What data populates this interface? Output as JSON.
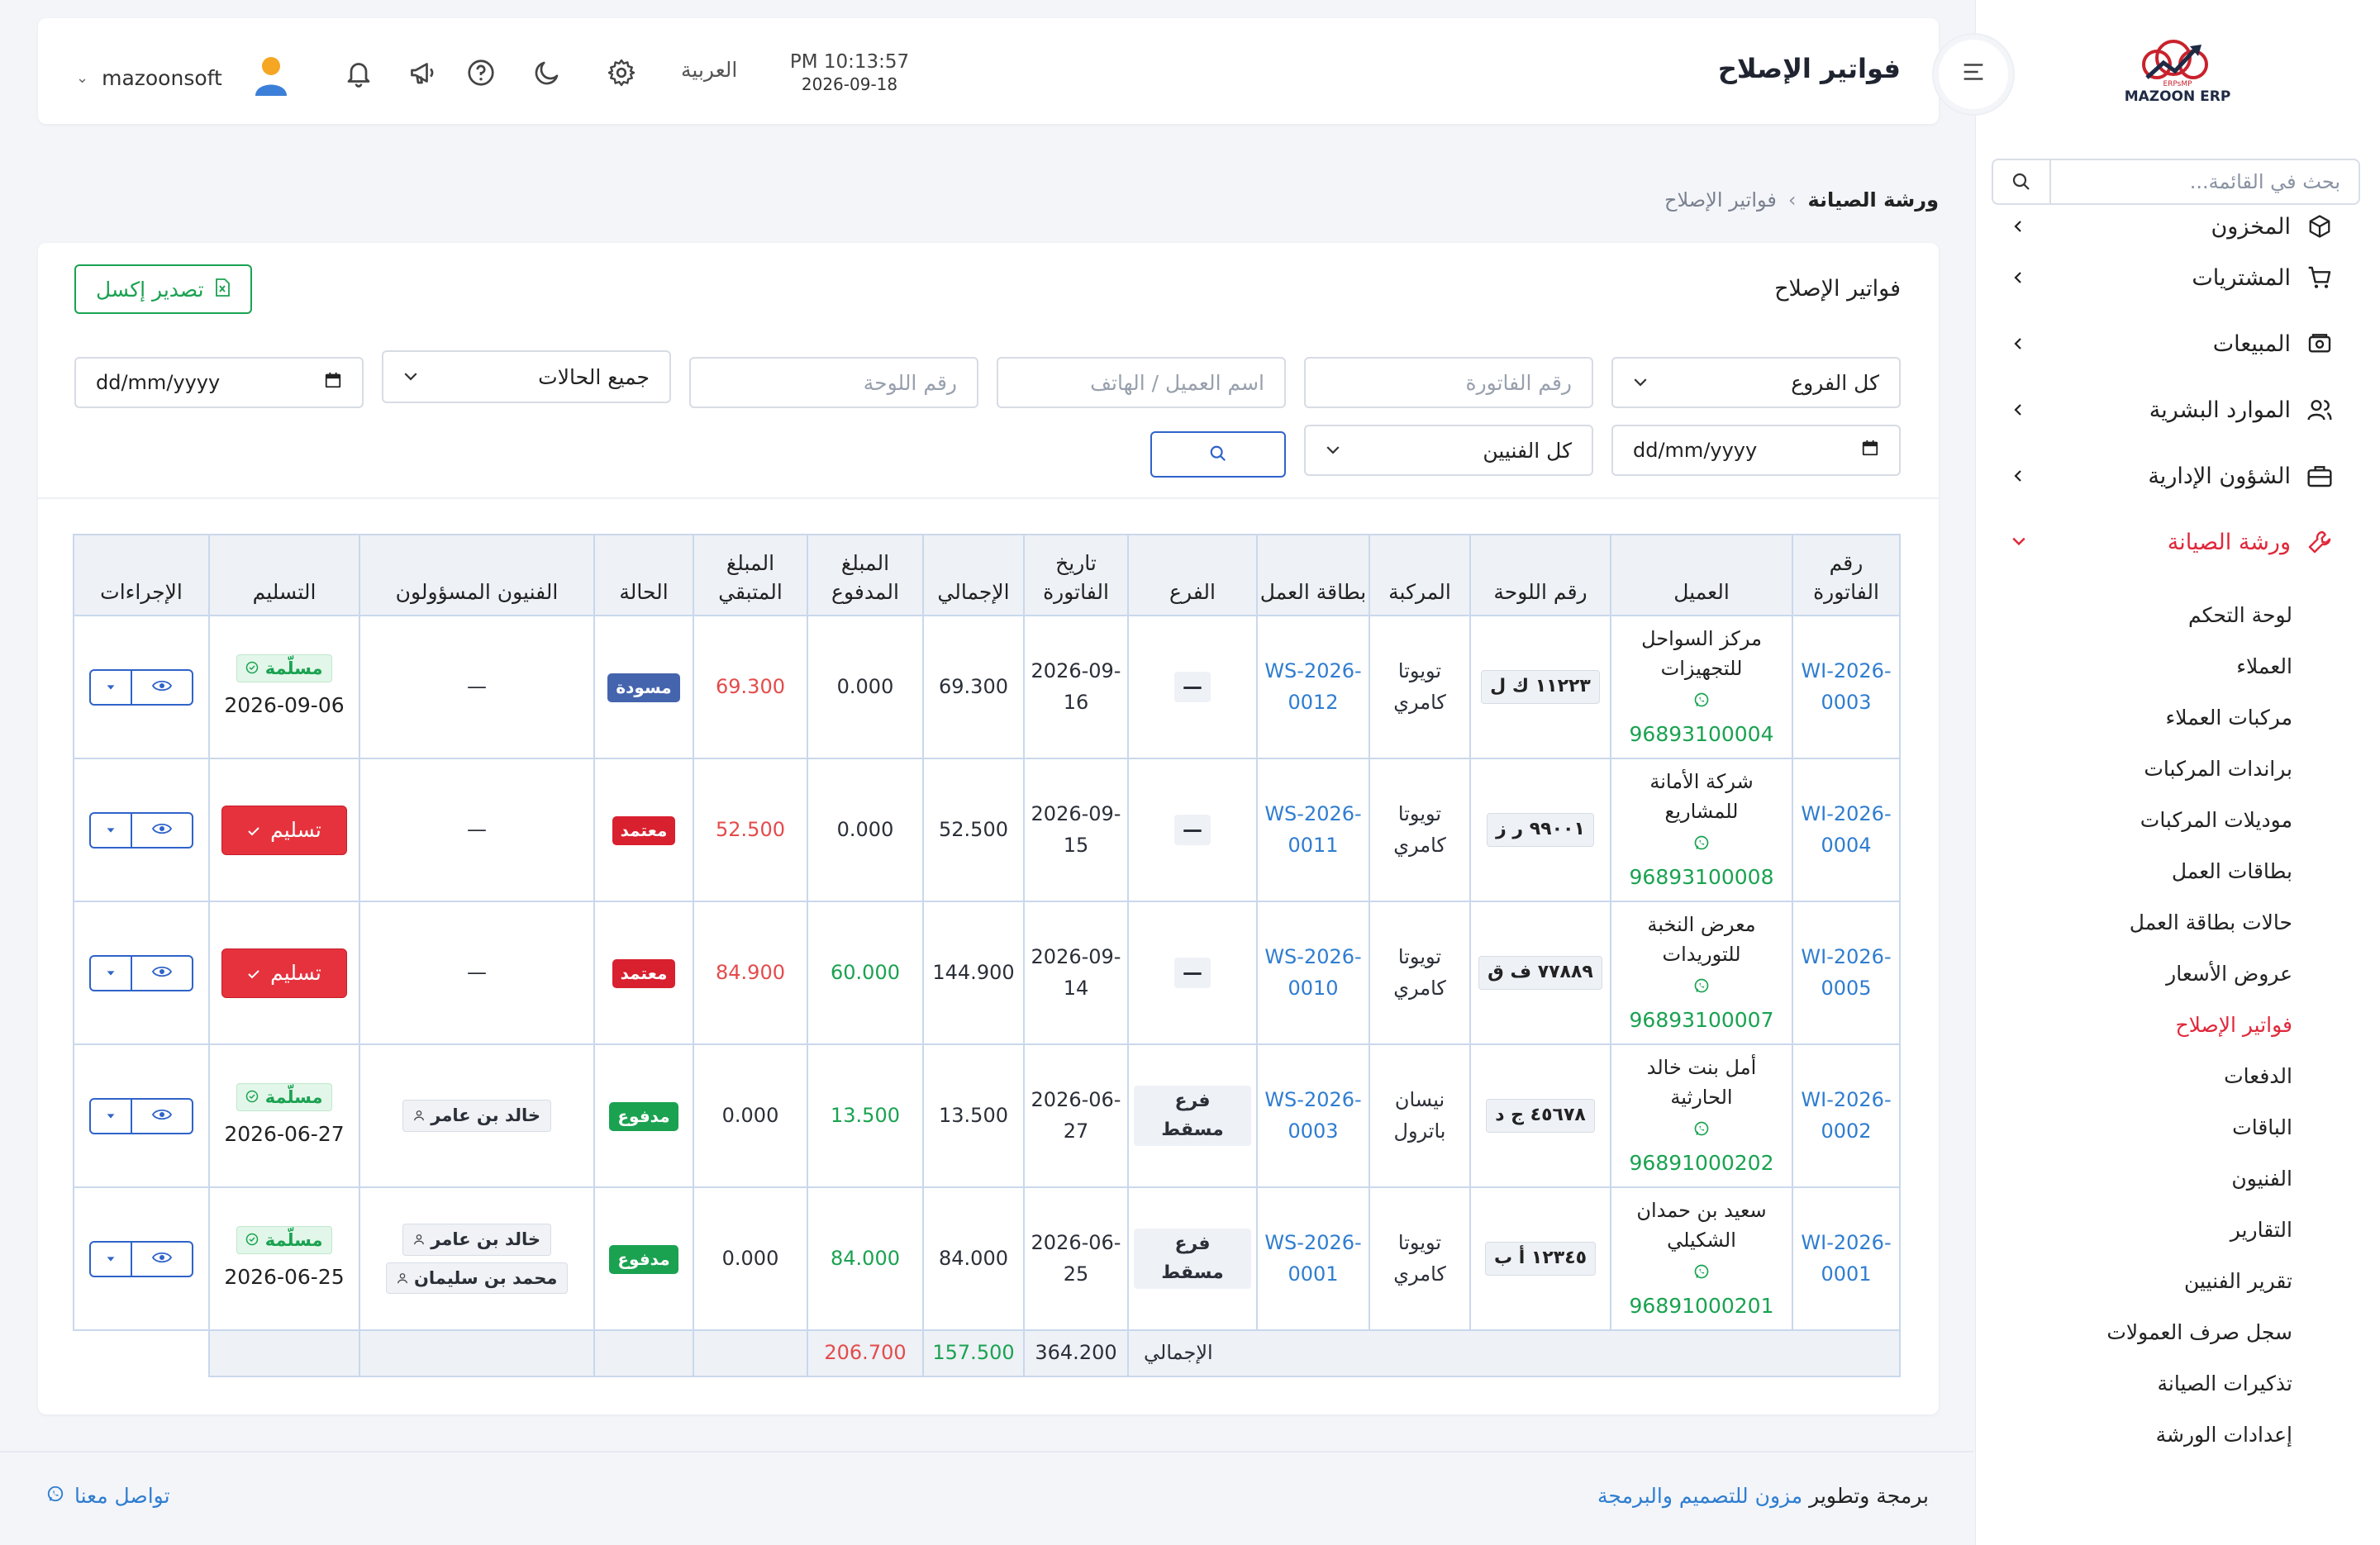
{
  "app": {
    "brand": "MAZOON ERP",
    "brand_sub": "ERPsMP"
  },
  "search": {
    "placeholder": "بحث في القائمة..."
  },
  "sidebar": {
    "items": [
      {
        "label": "المخزون"
      },
      {
        "label": "المشتريات"
      },
      {
        "label": "المبيعات"
      },
      {
        "label": "الموارد البشرية"
      },
      {
        "label": "الشؤون الإدارية"
      },
      {
        "label": "ورشة الصيانة"
      }
    ],
    "sub_items": [
      {
        "label": "لوحة التحكم"
      },
      {
        "label": "العملاء"
      },
      {
        "label": "مركبات العملاء"
      },
      {
        "label": "براندات المركبات"
      },
      {
        "label": "موديلات المركبات"
      },
      {
        "label": "بطاقات العمل"
      },
      {
        "label": "حالات بطاقة العمل"
      },
      {
        "label": "عروض الأسعار"
      },
      {
        "label": "فواتير الإصلاح"
      },
      {
        "label": "الدفعات"
      },
      {
        "label": "الباقات"
      },
      {
        "label": "الفنيون"
      },
      {
        "label": "التقارير"
      },
      {
        "label": "تقرير الفنيين"
      },
      {
        "label": "سجل صرف العمولات"
      },
      {
        "label": "تذكيرات الصيانة"
      },
      {
        "label": "إعدادات الورشة"
      }
    ]
  },
  "header": {
    "title": "فواتير الإصلاح",
    "time": "PM 10:13:57",
    "date": "2026-09-18",
    "language": "العربية",
    "username": "mazoonsoft"
  },
  "breadcrumb": {
    "home": "ورشة الصيانة",
    "separator": "›",
    "current": "فواتير الإصلاح"
  },
  "card": {
    "title": "فواتير الإصلاح",
    "export_label": "تصدير إكسل"
  },
  "filters": {
    "branch": "كل الفروع",
    "invoice_placeholder": "رقم الفاتورة",
    "client_placeholder": "اسم العميل / الهاتف",
    "plate_placeholder": "رقم اللوحة",
    "status": "جميع الحالات",
    "date_from": "dd/mm/yyyy",
    "technicians": "كل الفنيين",
    "date_to": "dd/mm/yyyy"
  },
  "table": {
    "headers": {
      "invoice": "رقم الفاتورة",
      "client": "العميل",
      "plate": "رقم اللوحة",
      "vehicle": "المركبة",
      "job_card": "بطاقة العمل",
      "branch": "الفرع",
      "date": "تاريخ الفاتورة",
      "total": "الإجمالي",
      "paid": "المبلغ المدفوع",
      "remaining": "المبلغ المتبقي",
      "status": "الحالة",
      "technicians": "الفنيون المسؤولون",
      "delivery": "التسليم",
      "actions": "الإجراءات"
    },
    "rows": [
      {
        "invoice": "WI-2026-0003",
        "client": "مركز السواحل للتجهيزات",
        "phone": "96893100004",
        "plate": "١١٢٢٣ ك ل",
        "vehicle": "تويوتا كامري",
        "job_card": "WS-2026-0012",
        "branch": "—",
        "date": "2026-09-16",
        "total": "69.300",
        "paid": "0.000",
        "remaining": "69.300",
        "status": "مسودة",
        "tech1": "—",
        "delivery_badge": "مسلّمة",
        "delivery_date": "2026-09-06"
      },
      {
        "invoice": "WI-2026-0004",
        "client": "شركة الأمانة للمشاريع",
        "phone": "96893100008",
        "plate": "٩٩٠٠١ ر ز",
        "vehicle": "تويوتا كامري",
        "job_card": "WS-2026-0011",
        "branch": "—",
        "date": "2026-09-15",
        "total": "52.500",
        "paid": "0.000",
        "remaining": "52.500",
        "status": "معتمد",
        "tech1": "—",
        "deliver_label": "تسليم"
      },
      {
        "invoice": "WI-2026-0005",
        "client": "معرض النخبة للتوريدات",
        "phone": "96893100007",
        "plate": "٧٧٨٨٩ ف ق",
        "vehicle": "تويوتا كامري",
        "job_card": "WS-2026-0010",
        "branch": "—",
        "date": "2026-09-14",
        "total": "144.900",
        "paid": "60.000",
        "remaining": "84.900",
        "status": "معتمد",
        "tech1": "—",
        "deliver_label": "تسليم"
      },
      {
        "invoice": "WI-2026-0002",
        "client": "أمل بنت خالد الحارثية",
        "phone": "96891000202",
        "plate": "٤٥٦٧٨ ج د",
        "vehicle": "نيسان باترول",
        "job_card": "WS-2026-0003",
        "branch": "فرع مسقط",
        "date": "2026-06-27",
        "total": "13.500",
        "paid": "13.500",
        "remaining": "0.000",
        "status": "مدفوع",
        "tech1": "خالد بن عامر",
        "delivery_badge": "مسلّمة",
        "delivery_date": "2026-06-27"
      },
      {
        "invoice": "WI-2026-0001",
        "client": "سعيد بن حمدان الشكيلي",
        "phone": "96891000201",
        "plate": "١٢٣٤٥ أ ب",
        "vehicle": "تويوتا كامري",
        "job_card": "WS-2026-0001",
        "branch": "فرع مسقط",
        "date": "2026-06-25",
        "total": "84.000",
        "paid": "84.000",
        "remaining": "0.000",
        "status": "مدفوع",
        "tech1": "خالد بن عامر",
        "tech2": "محمد بن سليمان",
        "delivery_badge": "مسلّمة",
        "delivery_date": "2026-06-25"
      }
    ],
    "footer": {
      "label": "الإجمالي",
      "total": "364.200",
      "paid": "157.500",
      "remaining": "206.700"
    }
  },
  "footer": {
    "credit_prefix": "برمجة وتطوير ",
    "credit_brand": "مزون للتصميم والبرمجة",
    "contact": "تواصل معنا"
  },
  "colors": {
    "accent_red": "#e0283a",
    "link_blue": "#2f7dd0",
    "green": "#1aa251",
    "draft_blue": "#4564ae"
  }
}
